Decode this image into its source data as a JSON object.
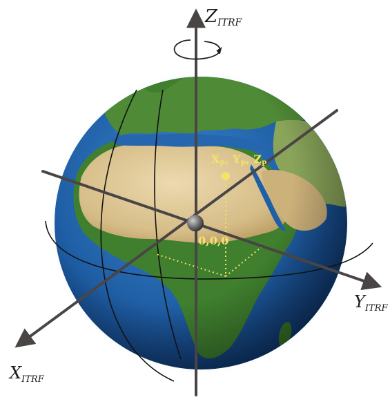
{
  "diagram": {
    "axes": {
      "z": {
        "letter": "Z",
        "subscript": "ITRF"
      },
      "y": {
        "letter": "Y",
        "subscript": "ITRF"
      },
      "x": {
        "letter": "X",
        "subscript": "ITRF"
      }
    },
    "point_label": {
      "x": "X",
      "x_sub": "P",
      "y": "Y",
      "y_sub": "P",
      "z": "Z",
      "z_sub": "P",
      "separator": ", "
    },
    "origin_label": "0,0,0"
  },
  "colors": {
    "ocean": "#1f5fa6",
    "ocean_dark": "#0b2f66",
    "land_green": "#3f7f2e",
    "desert": "#d8c08e",
    "halo": "#cfe0f3",
    "axis": "#4a4545",
    "point": "#f3e36a"
  }
}
